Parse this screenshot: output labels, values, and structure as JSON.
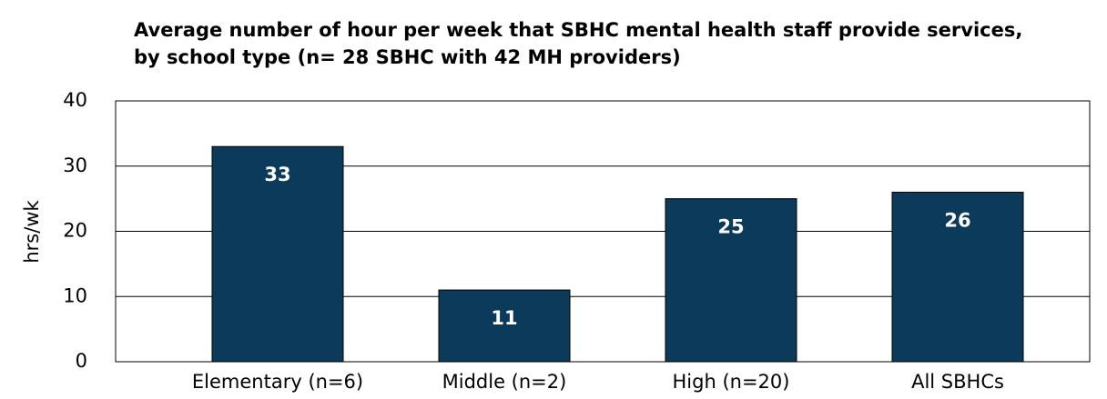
{
  "chart_data": {
    "type": "bar",
    "title": [
      "Average number of hour per week that SBHC mental health staff provide services,",
      "by school type (n= 28 SBHC with 42 MH providers)"
    ],
    "y_label": "hrs/wk",
    "categories": [
      "Elementary (n=6)",
      "Middle (n=2)",
      "High (n=20)",
      "All SBHCs"
    ],
    "values": [
      33,
      11,
      25,
      26
    ],
    "color": "#0c3a5b",
    "ylim": [
      0,
      40
    ],
    "yticks": [
      0,
      10,
      20,
      30,
      40
    ],
    "grid": true
  }
}
